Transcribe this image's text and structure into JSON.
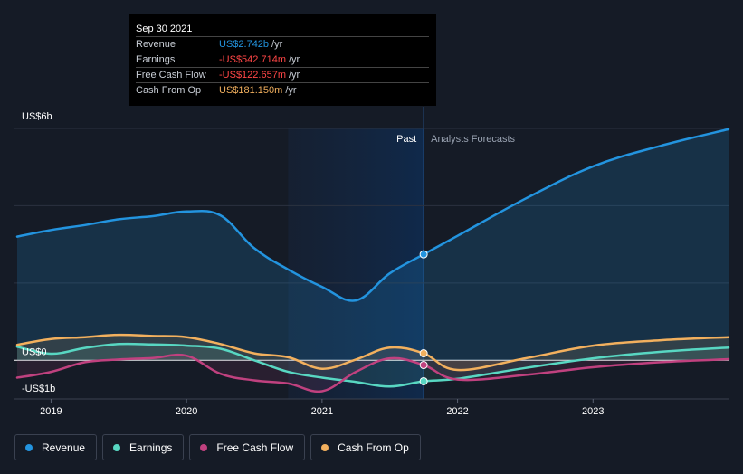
{
  "tooltip": {
    "date": "Sep 30 2021",
    "rows": [
      {
        "name": "Revenue",
        "value": "US$2.742b",
        "unit": "/yr",
        "color": "#2394df"
      },
      {
        "name": "Earnings",
        "value": "-US$542.714m",
        "unit": "/yr",
        "color": "#ff4646"
      },
      {
        "name": "Free Cash Flow",
        "value": "-US$122.657m",
        "unit": "/yr",
        "color": "#ff4646"
      },
      {
        "name": "Cash From Op",
        "value": "US$181.150m",
        "unit": "/yr",
        "color": "#f2b05e"
      }
    ]
  },
  "zones": {
    "past": "Past",
    "forecast": "Analysts Forecasts"
  },
  "legend": [
    {
      "label": "Revenue",
      "color": "#2394df"
    },
    {
      "label": "Earnings",
      "color": "#58d7c2"
    },
    {
      "label": "Free Cash Flow",
      "color": "#c0417f"
    },
    {
      "label": "Cash From Op",
      "color": "#f2b05e"
    }
  ],
  "chart_data": {
    "type": "line",
    "title": "",
    "xlabel": "",
    "ylabel": "",
    "y_unit": "US$ billions",
    "y_axis_labels": [
      {
        "value": 6,
        "text": "US$6b"
      },
      {
        "value": 0,
        "text": "US$0"
      },
      {
        "value": -1,
        "text": "-US$1b"
      }
    ],
    "ylim": [
      -1,
      6
    ],
    "xlim": [
      2018.73,
      2024.0
    ],
    "x_ticks": [
      2019,
      2020,
      2021,
      2022,
      2023
    ],
    "x_tick_labels": [
      "2019",
      "2020",
      "2021",
      "2022",
      "2023"
    ],
    "past_region_start": 2020.75,
    "past_end": 2021.75,
    "highlight_x": 2021.75,
    "series": [
      {
        "name": "Revenue",
        "color": "#2394df",
        "points": [
          [
            2018.75,
            3.2
          ],
          [
            2019.0,
            3.37
          ],
          [
            2019.25,
            3.5
          ],
          [
            2019.5,
            3.65
          ],
          [
            2019.75,
            3.73
          ],
          [
            2020.0,
            3.85
          ],
          [
            2020.25,
            3.75
          ],
          [
            2020.5,
            2.9
          ],
          [
            2020.75,
            2.35
          ],
          [
            2021.0,
            1.9
          ],
          [
            2021.25,
            1.55
          ],
          [
            2021.5,
            2.25
          ],
          [
            2021.75,
            2.742
          ],
          [
            2022.0,
            3.22
          ],
          [
            2022.5,
            4.18
          ],
          [
            2023.0,
            5.02
          ],
          [
            2023.5,
            5.55
          ],
          [
            2024.0,
            5.98
          ]
        ]
      },
      {
        "name": "Earnings",
        "color": "#58d7c2",
        "points": [
          [
            2018.75,
            0.35
          ],
          [
            2019.0,
            0.17
          ],
          [
            2019.25,
            0.32
          ],
          [
            2019.5,
            0.42
          ],
          [
            2019.75,
            0.41
          ],
          [
            2020.0,
            0.38
          ],
          [
            2020.25,
            0.3
          ],
          [
            2020.5,
            0.0
          ],
          [
            2020.75,
            -0.3
          ],
          [
            2021.0,
            -0.45
          ],
          [
            2021.25,
            -0.56
          ],
          [
            2021.5,
            -0.68
          ],
          [
            2021.75,
            -0.543
          ],
          [
            2022.0,
            -0.48
          ],
          [
            2022.5,
            -0.2
          ],
          [
            2023.0,
            0.05
          ],
          [
            2023.5,
            0.22
          ],
          [
            2024.0,
            0.33
          ]
        ]
      },
      {
        "name": "Free Cash Flow",
        "color": "#c0417f",
        "points": [
          [
            2018.75,
            -0.45
          ],
          [
            2019.0,
            -0.3
          ],
          [
            2019.25,
            -0.05
          ],
          [
            2019.5,
            0.02
          ],
          [
            2019.75,
            0.06
          ],
          [
            2020.0,
            0.12
          ],
          [
            2020.25,
            -0.35
          ],
          [
            2020.5,
            -0.52
          ],
          [
            2020.75,
            -0.6
          ],
          [
            2021.0,
            -0.8
          ],
          [
            2021.25,
            -0.3
          ],
          [
            2021.5,
            0.05
          ],
          [
            2021.75,
            -0.123
          ],
          [
            2022.0,
            -0.5
          ],
          [
            2022.5,
            -0.38
          ],
          [
            2023.0,
            -0.18
          ],
          [
            2023.5,
            -0.05
          ],
          [
            2024.0,
            0.03
          ]
        ]
      },
      {
        "name": "Cash From Op",
        "color": "#f2b05e",
        "points": [
          [
            2018.75,
            0.4
          ],
          [
            2019.0,
            0.55
          ],
          [
            2019.25,
            0.6
          ],
          [
            2019.5,
            0.66
          ],
          [
            2019.75,
            0.63
          ],
          [
            2020.0,
            0.6
          ],
          [
            2020.25,
            0.42
          ],
          [
            2020.5,
            0.18
          ],
          [
            2020.75,
            0.08
          ],
          [
            2021.0,
            -0.22
          ],
          [
            2021.25,
            0.02
          ],
          [
            2021.5,
            0.33
          ],
          [
            2021.75,
            0.181
          ],
          [
            2022.0,
            -0.25
          ],
          [
            2022.5,
            0.05
          ],
          [
            2023.0,
            0.38
          ],
          [
            2023.5,
            0.52
          ],
          [
            2024.0,
            0.6
          ]
        ]
      }
    ]
  }
}
